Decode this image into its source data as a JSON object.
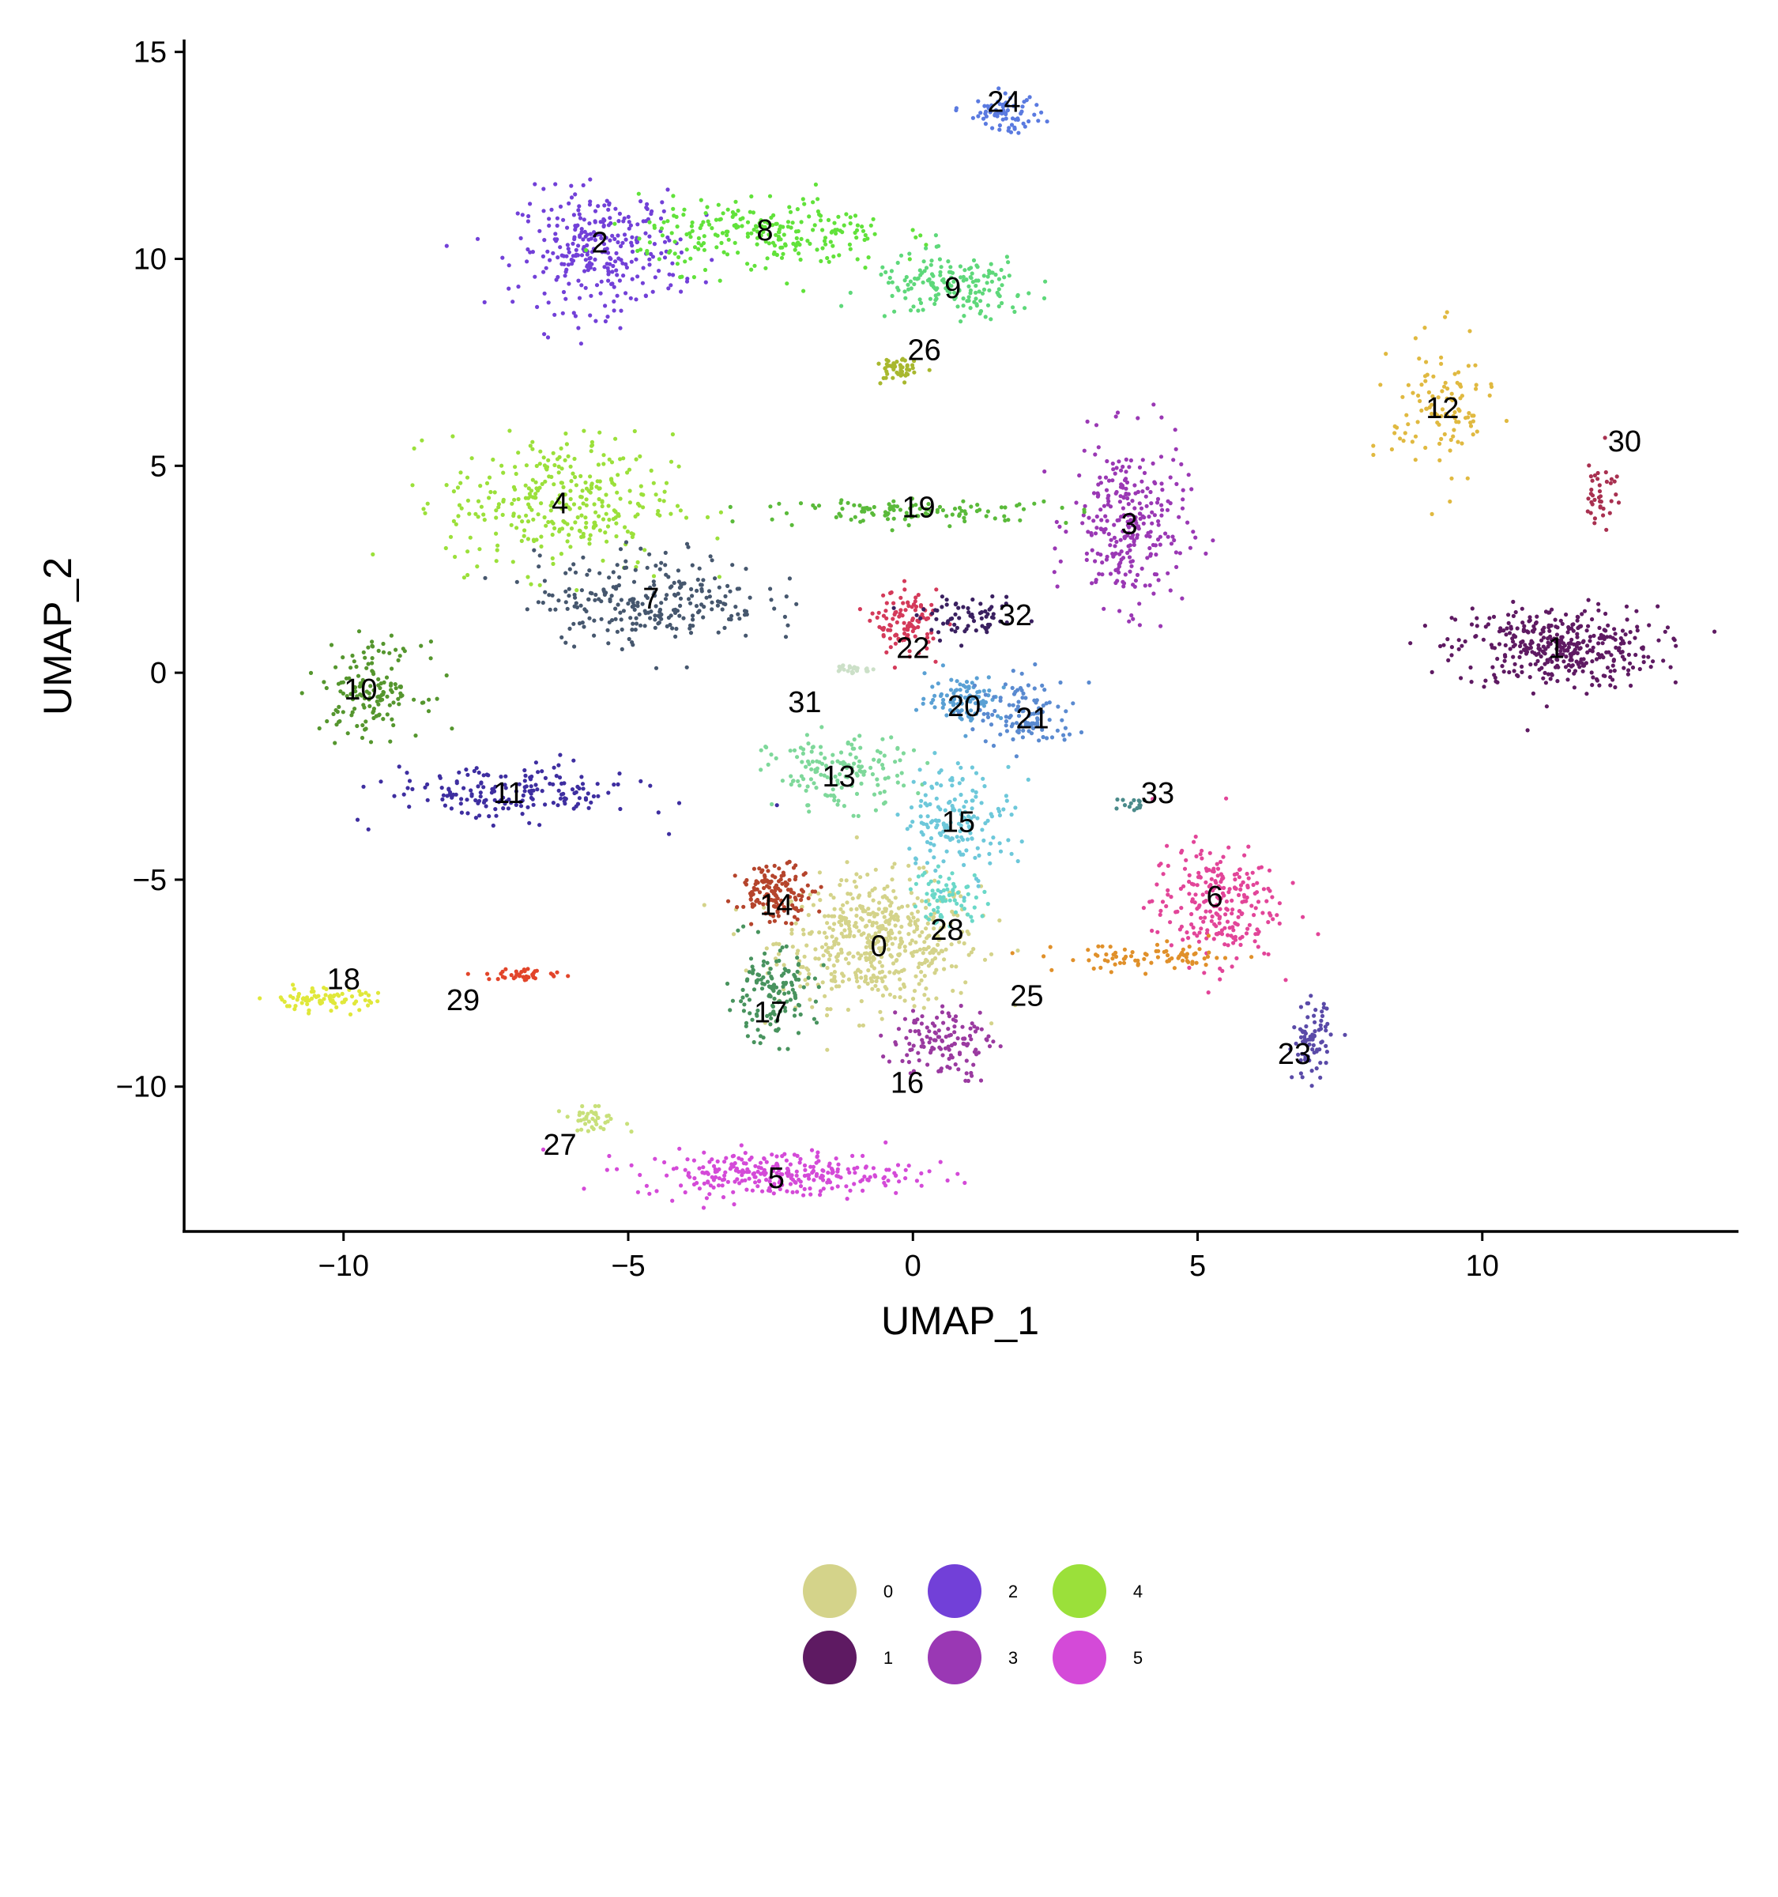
{
  "chart_data": {
    "type": "scatter",
    "title": "",
    "xlabel": "UMAP_1",
    "ylabel": "UMAP_2",
    "xlim": [
      -12.8,
      14.5
    ],
    "ylim": [
      -13.5,
      15.3
    ],
    "xticks": [
      -10,
      -5,
      0,
      5,
      10
    ],
    "yticks": [
      -10,
      -5,
      0,
      5,
      10,
      15
    ],
    "xtick_labels": [
      "−10",
      "−5",
      "0",
      "5",
      "10"
    ],
    "ytick_labels": [
      "−10",
      "−5",
      "0",
      "5",
      "10",
      "15"
    ],
    "grid": false,
    "legend_placement": "bottom",
    "clusters": [
      {
        "id": "0",
        "color": "#d4d38a",
        "label_pos": [
          -0.6,
          -6.5
        ],
        "spread": [
          1.6,
          1.4
        ],
        "n": 520
      },
      {
        "id": "1",
        "color": "#5e1a62",
        "label_pos": [
          11.3,
          0.6
        ],
        "spread": [
          1.6,
          0.9
        ],
        "n": 380
      },
      {
        "id": "2",
        "color": "#7240d8",
        "label_pos": [
          -5.5,
          10.2
        ],
        "spread": [
          1.3,
          1.3
        ],
        "n": 300
      },
      {
        "id": "3",
        "color": "#9a38b4",
        "label_pos": [
          3.8,
          3.6
        ],
        "spread": [
          0.9,
          1.8
        ],
        "n": 280
      },
      {
        "id": "4",
        "color": "#9be03a",
        "label_pos": [
          -6.2,
          4.1
        ],
        "spread": [
          1.8,
          1.5
        ],
        "n": 320
      },
      {
        "id": "5",
        "color": "#d44ad8",
        "label_pos": [
          -2.4,
          -12.1
        ],
        "spread": [
          2.2,
          0.5
        ],
        "n": 280
      },
      {
        "id": "6",
        "color": "#e24599",
        "label_pos": [
          5.3,
          -5.6
        ],
        "spread": [
          1.0,
          1.3
        ],
        "n": 240
      },
      {
        "id": "7",
        "color": "#46576e",
        "label_pos": [
          -4.6,
          1.8
        ],
        "spread": [
          1.8,
          1.0
        ],
        "n": 260
      },
      {
        "id": "8",
        "color": "#61e23a",
        "label_pos": [
          -2.6,
          10.6
        ],
        "spread": [
          2.0,
          0.8
        ],
        "n": 240
      },
      {
        "id": "9",
        "color": "#5ed87a",
        "label_pos": [
          0.7,
          9.3
        ],
        "spread": [
          1.3,
          0.7
        ],
        "n": 170
      },
      {
        "id": "10",
        "color": "#55962e",
        "label_pos": [
          -9.5,
          -0.4
        ],
        "spread": [
          0.8,
          1.0
        ],
        "n": 150
      },
      {
        "id": "11",
        "color": "#3e2ea0",
        "label_pos": [
          -7.1,
          -2.9
        ],
        "spread": [
          2.0,
          0.6
        ],
        "n": 180
      },
      {
        "id": "12",
        "color": "#e0b940",
        "label_pos": [
          9.3,
          6.3
        ],
        "spread": [
          0.8,
          1.6
        ],
        "n": 110
      },
      {
        "id": "13",
        "color": "#7ed89a",
        "label_pos": [
          -1.3,
          -2.4
        ],
        "spread": [
          1.1,
          0.8
        ],
        "n": 150
      },
      {
        "id": "14",
        "color": "#b5442c",
        "label_pos": [
          -2.4,
          -5.3
        ],
        "spread": [
          0.6,
          0.6
        ],
        "n": 140
      },
      {
        "id": "15",
        "color": "#6dc8da",
        "label_pos": [
          0.8,
          -3.5
        ],
        "spread": [
          0.9,
          1.2
        ],
        "n": 160
      },
      {
        "id": "16",
        "color": "#9a3aa0",
        "label_pos": [
          0.5,
          -8.9
        ],
        "spread": [
          0.8,
          0.8
        ],
        "n": 130
      },
      {
        "id": "17",
        "color": "#48935e",
        "label_pos": [
          -2.5,
          -7.8
        ],
        "spread": [
          0.7,
          1.0
        ],
        "n": 140
      },
      {
        "id": "18",
        "color": "#e0e83a",
        "label_pos": [
          -10.4,
          -7.9
        ],
        "spread": [
          0.9,
          0.25
        ],
        "n": 80
      },
      {
        "id": "19",
        "color": "#5aba3a",
        "label_pos": [
          0.1,
          3.9
        ],
        "spread": [
          2.5,
          0.25
        ],
        "n": 110
      },
      {
        "id": "20",
        "color": "#5aa0d4",
        "label_pos": [
          0.9,
          -0.6
        ],
        "spread": [
          0.6,
          0.5
        ],
        "n": 90
      },
      {
        "id": "21",
        "color": "#5a8ad0",
        "label_pos": [
          2.0,
          -1.0
        ],
        "spread": [
          0.8,
          0.8
        ],
        "n": 110
      },
      {
        "id": "22",
        "color": "#d43a5a",
        "label_pos": [
          -0.1,
          1.2
        ],
        "spread": [
          0.5,
          0.7
        ],
        "n": 110
      },
      {
        "id": "23",
        "color": "#5a4aa8",
        "label_pos": [
          7.0,
          -8.9
        ],
        "spread": [
          0.3,
          0.8
        ],
        "n": 80
      },
      {
        "id": "24",
        "color": "#5a7ae0",
        "label_pos": [
          1.6,
          13.5
        ],
        "spread": [
          0.6,
          0.4
        ],
        "n": 70
      },
      {
        "id": "25",
        "color": "#e0902a",
        "label_pos": [
          4.2,
          -6.9
        ],
        "spread": [
          1.5,
          0.3
        ],
        "n": 80
      },
      {
        "id": "26",
        "color": "#a8b82e",
        "label_pos": [
          -0.3,
          7.3
        ],
        "spread": [
          0.3,
          0.3
        ],
        "n": 50
      },
      {
        "id": "27",
        "color": "#c8e07a",
        "label_pos": [
          -5.6,
          -10.8
        ],
        "spread": [
          0.5,
          0.25
        ],
        "n": 40
      },
      {
        "id": "28",
        "color": "#6ad8c8",
        "label_pos": [
          0.6,
          -5.4
        ],
        "spread": [
          0.6,
          0.6
        ],
        "n": 70
      },
      {
        "id": "29",
        "color": "#e2452a",
        "label_pos": [
          -6.8,
          -7.3
        ],
        "spread": [
          0.6,
          0.15
        ],
        "n": 40
      },
      {
        "id": "30",
        "color": "#a83050",
        "label_pos": [
          12.1,
          4.4
        ],
        "spread": [
          0.25,
          0.9
        ],
        "n": 40
      },
      {
        "id": "31",
        "color": "#cce0c8",
        "label_pos": [
          -1.1,
          0.1
        ],
        "spread": [
          0.4,
          0.1
        ],
        "n": 25
      },
      {
        "id": "32",
        "color": "#3a2060",
        "label_pos": [
          1.0,
          1.3
        ],
        "spread": [
          0.8,
          0.4
        ],
        "n": 70
      },
      {
        "id": "33",
        "color": "#4a8a8a",
        "label_pos": [
          3.9,
          -3.2
        ],
        "spread": [
          0.3,
          0.15
        ],
        "n": 15
      }
    ],
    "labels_shown": [
      {
        "text": "0",
        "x": -0.6,
        "y": -6.6
      },
      {
        "text": "1",
        "x": 11.3,
        "y": 0.6
      },
      {
        "text": "2",
        "x": -5.5,
        "y": 10.4
      },
      {
        "text": "3",
        "x": 3.8,
        "y": 3.6
      },
      {
        "text": "4",
        "x": -6.2,
        "y": 4.1
      },
      {
        "text": "5",
        "x": -2.4,
        "y": -12.2
      },
      {
        "text": "6",
        "x": 5.3,
        "y": -5.4
      },
      {
        "text": "7",
        "x": -4.6,
        "y": 1.8
      },
      {
        "text": "8",
        "x": -2.6,
        "y": 10.7
      },
      {
        "text": "9",
        "x": 0.7,
        "y": 9.3
      },
      {
        "text": "10",
        "x": -9.7,
        "y": -0.4
      },
      {
        "text": "11",
        "x": -7.1,
        "y": -2.9
      },
      {
        "text": "12",
        "x": 9.3,
        "y": 6.4
      },
      {
        "text": "13",
        "x": -1.3,
        "y": -2.5
      },
      {
        "text": "14",
        "x": -2.4,
        "y": -5.6
      },
      {
        "text": "15",
        "x": 0.8,
        "y": -3.6
      },
      {
        "text": "16",
        "x": -0.1,
        "y": -9.9
      },
      {
        "text": "17",
        "x": -2.5,
        "y": -8.2
      },
      {
        "text": "18",
        "x": -10.0,
        "y": -7.4
      },
      {
        "text": "19",
        "x": 0.1,
        "y": 4.0
      },
      {
        "text": "20",
        "x": 0.9,
        "y": -0.8
      },
      {
        "text": "21",
        "x": 2.1,
        "y": -1.1
      },
      {
        "text": "22",
        "x": 0.0,
        "y": 0.6
      },
      {
        "text": "23",
        "x": 6.7,
        "y": -9.2
      },
      {
        "text": "24",
        "x": 1.6,
        "y": 13.8
      },
      {
        "text": "25",
        "x": 2.0,
        "y": -7.8
      },
      {
        "text": "26",
        "x": 0.2,
        "y": 7.8
      },
      {
        "text": "27",
        "x": -6.2,
        "y": -11.4
      },
      {
        "text": "28",
        "x": 0.6,
        "y": -6.2
      },
      {
        "text": "29",
        "x": -7.9,
        "y": -7.9
      },
      {
        "text": "30",
        "x": 12.5,
        "y": 5.6
      },
      {
        "text": "31",
        "x": -1.9,
        "y": -0.7
      },
      {
        "text": "32",
        "x": 1.8,
        "y": 1.4
      },
      {
        "text": "33",
        "x": 4.3,
        "y": -2.9
      }
    ]
  },
  "legend": {
    "items": [
      {
        "label": "0",
        "color": "#d4d38a"
      },
      {
        "label": "1",
        "color": "#5e1a62"
      },
      {
        "label": "2",
        "color": "#7240d8"
      },
      {
        "label": "3",
        "color": "#9a38b4"
      },
      {
        "label": "4",
        "color": "#9be03a"
      },
      {
        "label": "5",
        "color": "#d44ad8"
      }
    ]
  }
}
